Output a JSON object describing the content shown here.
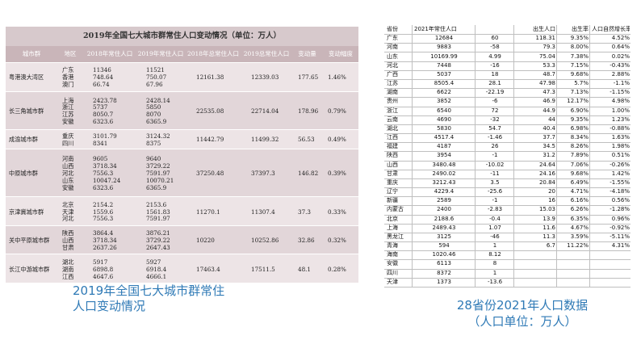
{
  "left_table": {
    "title": "2019年全国七大城市群常住人口变动情况（单位：万人）",
    "headers": [
      "城市群",
      "地区",
      "2018年常住人口",
      "2019年常住人口",
      "2018年总常住人口",
      "2019总常住人口",
      "变动量",
      "变动幅度"
    ],
    "groups": [
      {
        "name": "粤港澳大湾区",
        "regions": [
          "广东",
          "香港",
          "澳门"
        ],
        "pop2018": [
          "11346",
          "748.64",
          "66.74"
        ],
        "pop2019": [
          "11521",
          "750.07",
          "67.96"
        ],
        "total2018": "12161.38",
        "total2019": "12339.03",
        "change": "177.65",
        "rate": "1.46%"
      },
      {
        "name": "长三角城市群",
        "regions": [
          "上海",
          "浙江",
          "江苏",
          "安徽"
        ],
        "pop2018": [
          "2423.78",
          "5737",
          "8050.7",
          "6323.6"
        ],
        "pop2019": [
          "2428.14",
          "5850",
          "8070",
          "6365.9"
        ],
        "total2018": "22535.08",
        "total2019": "22714.04",
        "change": "178.96",
        "rate": "0.79%"
      },
      {
        "name": "成渝城市群",
        "regions": [
          "重庆",
          "四川"
        ],
        "pop2018": [
          "3101.79",
          "8341"
        ],
        "pop2019": [
          "3124.32",
          "8375"
        ],
        "total2018": "11442.79",
        "total2019": "11499.32",
        "change": "56.53",
        "rate": "0.49%"
      },
      {
        "name": "中原城市群",
        "regions": [
          "河南",
          "山西",
          "河北",
          "山东",
          "安徽"
        ],
        "pop2018": [
          "9605",
          "3718.34",
          "7556.3",
          "10047.24",
          "6323.6"
        ],
        "pop2019": [
          "9640",
          "3729.22",
          "7591.97",
          "10070.21",
          "6365.9"
        ],
        "total2018": "37250.48",
        "total2019": "37397.3",
        "change": "146.82",
        "rate": "0.39%"
      },
      {
        "name": "京津冀城市群",
        "regions": [
          "北京",
          "天津",
          "河北"
        ],
        "pop2018": [
          "2154.2",
          "1559.6",
          "7556.3"
        ],
        "pop2019": [
          "2153.6",
          "1561.83",
          "7591.97"
        ],
        "total2018": "11270.1",
        "total2019": "11307.4",
        "change": "37.3",
        "rate": "0.33%"
      },
      {
        "name": "关中平原城市群",
        "regions": [
          "陕西",
          "山西",
          "甘肃"
        ],
        "pop2018": [
          "3864.4",
          "3718.34",
          "2637.26"
        ],
        "pop2019": [
          "3876.21",
          "3729.22",
          "2647.43"
        ],
        "total2018": "10220",
        "total2019": "10252.86",
        "change": "32.86",
        "rate": "0.32%"
      },
      {
        "name": "长江中游城市群",
        "regions": [
          "湖北",
          "湖南",
          "江西"
        ],
        "pop2018": [
          "5917",
          "6898.8",
          "4647.6"
        ],
        "pop2019": [
          "5927",
          "6918.4",
          "4666.1"
        ],
        "total2018": "17463.4",
        "total2019": "17511.5",
        "change": "48.1",
        "rate": "0.28%"
      }
    ]
  },
  "left_caption": "2019年全国七大城市群常住人口变动情况",
  "right_table": {
    "headers": [
      "省份",
      "2021年常住人口",
      "",
      "出生人口",
      "出生率",
      "人口自然增长率"
    ],
    "rows": [
      [
        "广东",
        "12684",
        "60",
        "118.31",
        "9.35%",
        "4.52%"
      ],
      [
        "河南",
        "9883",
        "-58",
        "79.3",
        "8.00%",
        "0.64%"
      ],
      [
        "山东",
        "10169.99",
        "4.99",
        "75.04",
        "7.38%",
        "0.02%"
      ],
      [
        "河北",
        "7448",
        "-16",
        "53.3",
        "7.15%",
        "-0.43%"
      ],
      [
        "广西",
        "5037",
        "18",
        "48.7",
        "9.68%",
        "2.88%"
      ],
      [
        "江苏",
        "8505.4",
        "28.1",
        "47.98",
        "5.7%",
        "-1.1%"
      ],
      [
        "湖南",
        "6622",
        "-22.19",
        "47.3",
        "7.13%",
        "-1.15%"
      ],
      [
        "贵州",
        "3852",
        "-6",
        "46.9",
        "12.17%",
        "4.98%"
      ],
      [
        "浙江",
        "6540",
        "72",
        "44.9",
        "6.90%",
        "1.00%"
      ],
      [
        "云南",
        "4690",
        "-32",
        "44",
        "9.35%",
        "1.23%"
      ],
      [
        "湖北",
        "5830",
        "54.7",
        "40.4",
        "6.98%",
        "-0.88%"
      ],
      [
        "江西",
        "4517.4",
        "-1.46",
        "37.7",
        "8.34%",
        "1.63%"
      ],
      [
        "福建",
        "4187",
        "26",
        "34.5",
        "8.26%",
        "1.98%"
      ],
      [
        "陕西",
        "3954",
        "-1",
        "31.2",
        "7.89%",
        "0.51%"
      ],
      [
        "山西",
        "3480.48",
        "-10.02",
        "24.64",
        "7.06%",
        "-0.26%"
      ],
      [
        "甘肃",
        "2490.02",
        "-11",
        "24.16",
        "9.68%",
        "1.42%"
      ],
      [
        "重庆",
        "3212.43",
        "3.5",
        "20.84",
        "6.49%",
        "-1.55%"
      ],
      [
        "辽宁",
        "4229.4",
        "-25.6",
        "20",
        "4.71%",
        "-4.18%"
      ],
      [
        "新疆",
        "2589",
        "-1",
        "16",
        "6.16%",
        "0.56%"
      ],
      [
        "内蒙古",
        "2400",
        "-2.83",
        "15.03",
        "6.26%",
        "-1.28%"
      ],
      [
        "北京",
        "2188.6",
        "-0.4",
        "13.9",
        "6.35%",
        "0.96%"
      ],
      [
        "上海",
        "2489.43",
        "1.07",
        "11.6",
        "4.67%",
        "-0.92%"
      ],
      [
        "黑龙江",
        "3125",
        "-46",
        "11.3",
        "3.59%",
        "-5.11%"
      ],
      [
        "青海",
        "594",
        "1",
        "6.7",
        "11.22%",
        "4.31%"
      ],
      [
        "海南",
        "1020.46",
        "8.12",
        "",
        "",
        ""
      ],
      [
        "安徽",
        "6113",
        "8",
        "",
        "",
        ""
      ],
      [
        "四川",
        "8372",
        "1",
        "",
        "",
        ""
      ],
      [
        "天津",
        "1373",
        "-13.6",
        "",
        "",
        ""
      ]
    ]
  },
  "right_caption_line1": "28省份2021年人口数据",
  "right_caption_line2": "（人口单位：万人）",
  "colors": {
    "caption": "#2f7ab6",
    "left_bg": "#ede4e6",
    "left_header": "#c9b5b9"
  }
}
